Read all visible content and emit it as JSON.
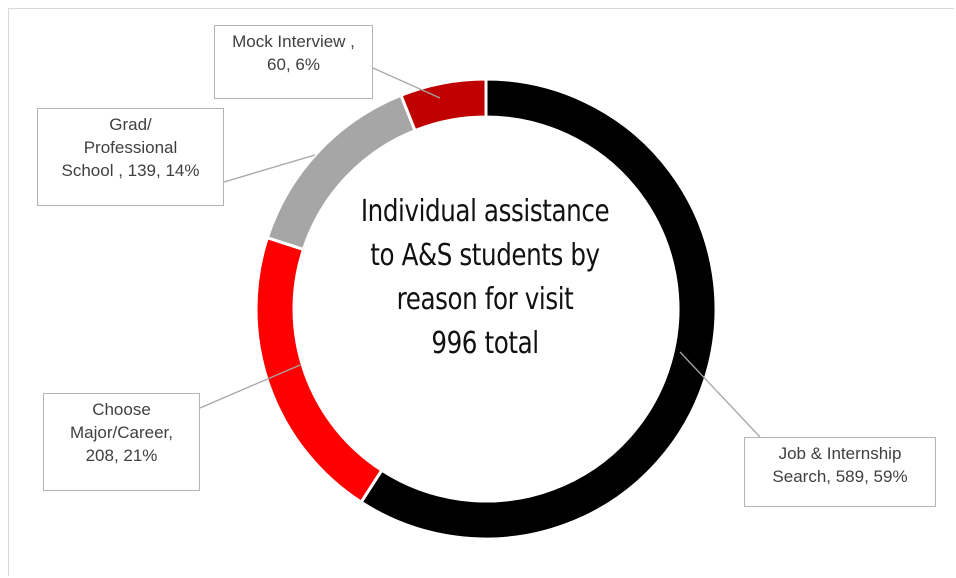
{
  "chart_data": {
    "type": "pie",
    "donut": true,
    "title_lines": [
      "Individual assistance",
      "to A&S students by",
      "reason for visit",
      "996 total"
    ],
    "slices": [
      {
        "label": "Job & Internship Search",
        "value": 589,
        "percent": 59,
        "color": "#000000",
        "label_lines": [
          "Job & Internship",
          "Search, 589, 59%"
        ]
      },
      {
        "label": "Choose Major/Career",
        "value": 208,
        "percent": 21,
        "color": "#ff0000",
        "label_lines": [
          "Choose",
          "Major/Career,",
          "208, 21%"
        ]
      },
      {
        "label": "Grad/ Professional School",
        "value": 139,
        "percent": 14,
        "color": "#a6a6a6",
        "label_lines": [
          "Grad/",
          "Professional",
          "School , 139, 14%"
        ]
      },
      {
        "label": "Mock Interview",
        "value": 60,
        "percent": 6,
        "color": "#c00000",
        "label_lines": [
          "Mock Interview ,",
          "60, 6%"
        ]
      }
    ],
    "total": 996
  }
}
